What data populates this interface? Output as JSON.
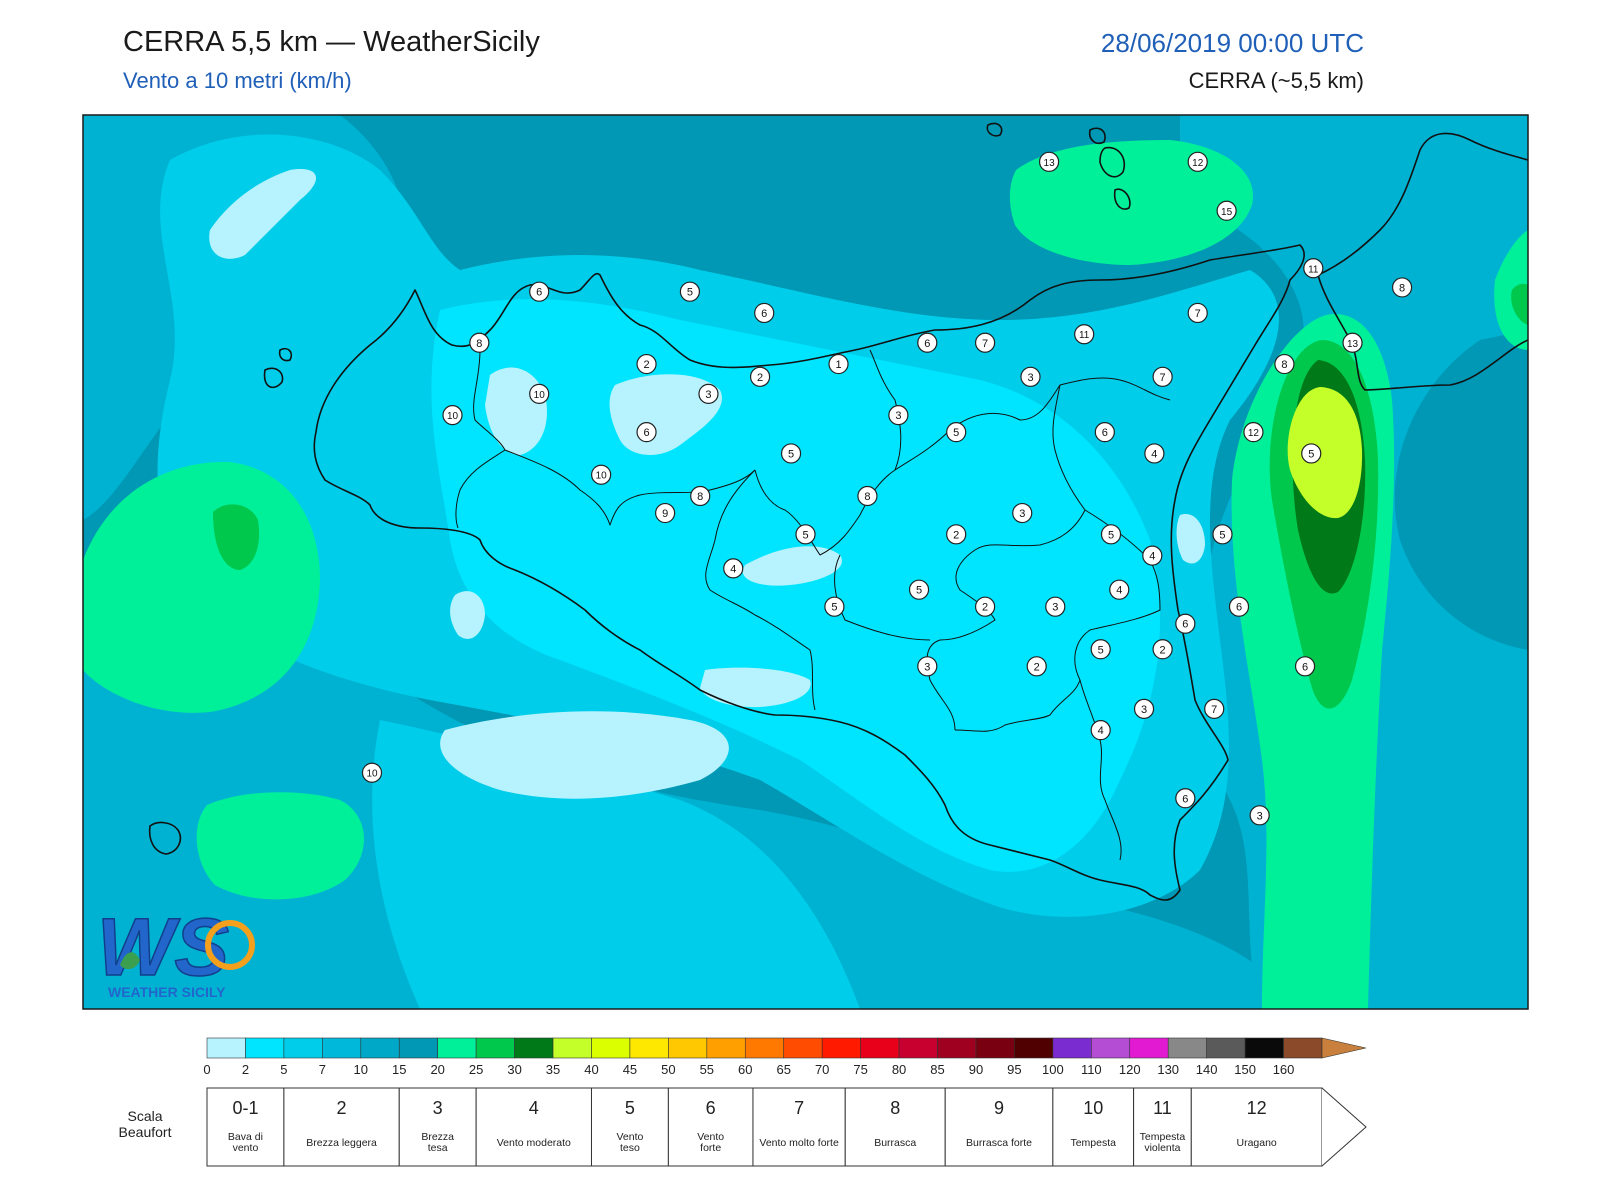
{
  "header": {
    "title": "CERRA 5,5 km — WeatherSicily",
    "subtitle": "Vento a 10 metri (km/h)",
    "datetime": "28/06/2019 00:00 UTC",
    "model": "CERRA (~5,5 km)"
  },
  "logo": {
    "text": "WS",
    "caption": "WEATHER SICILY"
  },
  "colors": {
    "frame": "#1a1a1a",
    "bg_dark": "#0098b4",
    "bg_mid": "#00b2d2",
    "bg_light": "#00cdea",
    "bg_bright": "#00e5ff",
    "bg_pale": "#b6f3ff",
    "green_light": "#00f09a",
    "green_mid": "#00c84c",
    "green_dark": "#007a18",
    "yellow_green": "#c4ff2a"
  },
  "wind_scale": {
    "ticks": [
      "0",
      "2",
      "5",
      "7",
      "10",
      "15",
      "20",
      "25",
      "30",
      "35",
      "40",
      "45",
      "50",
      "55",
      "60",
      "65",
      "70",
      "75",
      "80",
      "85",
      "90",
      "95",
      "100",
      "110",
      "120",
      "130",
      "140",
      "150",
      "160"
    ],
    "colors": [
      "#b6f3ff",
      "#00e5ff",
      "#00cdea",
      "#00b8da",
      "#00a8c8",
      "#0098b4",
      "#00f09a",
      "#00c84c",
      "#007a18",
      "#c4ff2a",
      "#dcff00",
      "#ffe800",
      "#ffc800",
      "#ffa000",
      "#ff7800",
      "#ff4c00",
      "#ff1a00",
      "#e8001a",
      "#c80030",
      "#a00020",
      "#780010",
      "#500000",
      "#7a2cd0",
      "#b44cd4",
      "#e21ad2",
      "#888888",
      "#5a5a5a",
      "#0a0a0a",
      "#8b4a2a",
      "#c8803c"
    ]
  },
  "beaufort": {
    "label": "Scala Beaufort",
    "classes": [
      {
        "num": "0-1",
        "desc": "Bava di vento",
        "from": 0,
        "to": 2
      },
      {
        "num": "2",
        "desc": "Brezza leggera",
        "from": 2,
        "to": 5
      },
      {
        "num": "3",
        "desc": "Brezza tesa",
        "from": 5,
        "to": 7
      },
      {
        "num": "4",
        "desc": "Vento moderato",
        "from": 7,
        "to": 10
      },
      {
        "num": "5",
        "desc": "Vento teso",
        "from": 10,
        "to": 12
      },
      {
        "num": "6",
        "desc": "Vento forte",
        "from": 12,
        "to": 14.2
      },
      {
        "num": "7",
        "desc": "Vento molto forte",
        "from": 14.2,
        "to": 16.6
      },
      {
        "num": "8",
        "desc": "Burrasca",
        "from": 16.6,
        "to": 19.2
      },
      {
        "num": "9",
        "desc": "Burrasca forte",
        "from": 19.2,
        "to": 22
      },
      {
        "num": "10",
        "desc": "Tempesta",
        "from": 22,
        "to": 24.1
      },
      {
        "num": "11",
        "desc": "Tempesta violenta",
        "from": 24.1,
        "to": 25.6
      },
      {
        "num": "12",
        "desc": "Uragano",
        "from": 25.6,
        "to": 29
      }
    ]
  },
  "stations": [
    {
      "label": "13",
      "lon": 14.68,
      "lat": 38.98
    },
    {
      "label": "12",
      "lon": 15.4,
      "lat": 38.98
    },
    {
      "label": "15",
      "lon": 15.54,
      "lat": 38.75
    },
    {
      "label": "11",
      "lon": 15.96,
      "lat": 38.48
    },
    {
      "label": "8",
      "lon": 16.39,
      "lat": 38.39
    },
    {
      "label": "6",
      "lon": 12.21,
      "lat": 38.37
    },
    {
      "label": "5",
      "lon": 12.94,
      "lat": 38.37
    },
    {
      "label": "6",
      "lon": 13.3,
      "lat": 38.27
    },
    {
      "label": "7",
      "lon": 15.4,
      "lat": 38.27
    },
    {
      "label": "11",
      "lon": 14.85,
      "lat": 38.17
    },
    {
      "label": "8",
      "lon": 11.92,
      "lat": 38.13
    },
    {
      "label": "6",
      "lon": 14.09,
      "lat": 38.13
    },
    {
      "label": "7",
      "lon": 14.37,
      "lat": 38.13
    },
    {
      "label": "13",
      "lon": 16.15,
      "lat": 38.13
    },
    {
      "label": "2",
      "lon": 12.73,
      "lat": 38.03
    },
    {
      "label": "1",
      "lon": 13.66,
      "lat": 38.03
    },
    {
      "label": "8",
      "lon": 15.82,
      "lat": 38.03
    },
    {
      "label": "2",
      "lon": 13.28,
      "lat": 37.97
    },
    {
      "label": "3",
      "lon": 14.59,
      "lat": 37.97
    },
    {
      "label": "7",
      "lon": 15.23,
      "lat": 37.97
    },
    {
      "label": "10",
      "lon": 12.21,
      "lat": 37.89
    },
    {
      "label": "3",
      "lon": 13.03,
      "lat": 37.89
    },
    {
      "label": "10",
      "lon": 11.79,
      "lat": 37.79
    },
    {
      "label": "3",
      "lon": 13.95,
      "lat": 37.79
    },
    {
      "label": "6",
      "lon": 12.73,
      "lat": 37.71
    },
    {
      "label": "5",
      "lon": 14.23,
      "lat": 37.71
    },
    {
      "label": "6",
      "lon": 14.95,
      "lat": 37.71
    },
    {
      "label": "12",
      "lon": 15.67,
      "lat": 37.71
    },
    {
      "label": "5",
      "lon": 13.43,
      "lat": 37.61
    },
    {
      "label": "4",
      "lon": 15.19,
      "lat": 37.61
    },
    {
      "label": "5",
      "lon": 15.95,
      "lat": 37.61
    },
    {
      "label": "10",
      "lon": 12.51,
      "lat": 37.51
    },
    {
      "label": "8",
      "lon": 12.99,
      "lat": 37.41
    },
    {
      "label": "8",
      "lon": 13.8,
      "lat": 37.41
    },
    {
      "label": "9",
      "lon": 12.82,
      "lat": 37.33
    },
    {
      "label": "3",
      "lon": 14.55,
      "lat": 37.33
    },
    {
      "label": "5",
      "lon": 13.5,
      "lat": 37.23
    },
    {
      "label": "2",
      "lon": 14.23,
      "lat": 37.23
    },
    {
      "label": "5",
      "lon": 14.98,
      "lat": 37.23
    },
    {
      "label": "5",
      "lon": 15.52,
      "lat": 37.23
    },
    {
      "label": "4",
      "lon": 15.18,
      "lat": 37.13
    },
    {
      "label": "4",
      "lon": 13.15,
      "lat": 37.07
    },
    {
      "label": "5",
      "lon": 14.05,
      "lat": 36.97
    },
    {
      "label": "4",
      "lon": 15.02,
      "lat": 36.97
    },
    {
      "label": "5",
      "lon": 13.64,
      "lat": 36.89
    },
    {
      "label": "2",
      "lon": 14.37,
      "lat": 36.89
    },
    {
      "label": "3",
      "lon": 14.71,
      "lat": 36.89
    },
    {
      "label": "6",
      "lon": 15.6,
      "lat": 36.89
    },
    {
      "label": "6",
      "lon": 15.34,
      "lat": 36.81
    },
    {
      "label": "5",
      "lon": 14.93,
      "lat": 36.69
    },
    {
      "label": "2",
      "lon": 15.23,
      "lat": 36.69
    },
    {
      "label": "3",
      "lon": 14.09,
      "lat": 36.61
    },
    {
      "label": "2",
      "lon": 14.62,
      "lat": 36.61
    },
    {
      "label": "6",
      "lon": 15.92,
      "lat": 36.61
    },
    {
      "label": "3",
      "lon": 15.14,
      "lat": 36.41
    },
    {
      "label": "7",
      "lon": 15.48,
      "lat": 36.41
    },
    {
      "label": "4",
      "lon": 14.93,
      "lat": 36.31
    },
    {
      "label": "10",
      "lon": 11.4,
      "lat": 36.11
    },
    {
      "label": "6",
      "lon": 15.34,
      "lat": 35.99
    },
    {
      "label": "3",
      "lon": 15.7,
      "lat": 35.91
    }
  ]
}
